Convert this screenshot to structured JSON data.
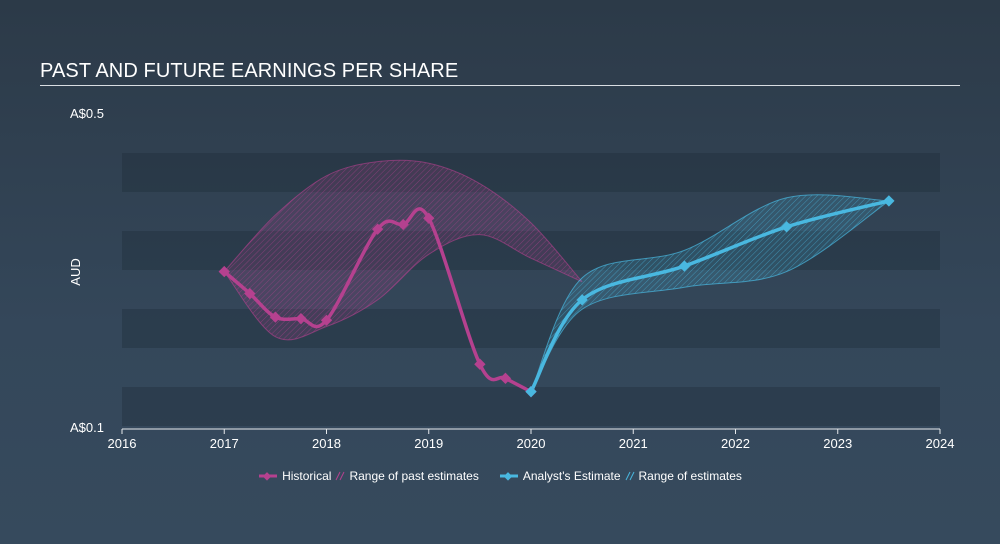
{
  "title": "PAST AND FUTURE EARNINGS PER SHARE",
  "chart_data": {
    "type": "line",
    "title": "PAST AND FUTURE EARNINGS PER SHARE",
    "ylabel": "AUD",
    "ylim": [
      0.1,
      0.5
    ],
    "xlim": [
      2016,
      2024
    ],
    "y_tick_labels": [
      "A$0.5",
      "A$0.1"
    ],
    "y_ticks": [
      0.5,
      0.1
    ],
    "x_ticks": [
      2016,
      2017,
      2018,
      2019,
      2020,
      2021,
      2022,
      2023,
      2024
    ],
    "x_tick_labels": [
      "2016",
      "2017",
      "2018",
      "2019",
      "2020",
      "2021",
      "2022",
      "2023",
      "2024"
    ],
    "series": [
      {
        "name": "Historical",
        "color": "#b5418f",
        "x": [
          2017.0,
          2017.25,
          2017.5,
          2017.75,
          2018.0,
          2018.5,
          2018.75,
          2019.0,
          2019.5,
          2019.75,
          2020.0
        ],
        "y": [
          0.298,
          0.27,
          0.24,
          0.238,
          0.236,
          0.352,
          0.358,
          0.366,
          0.18,
          0.162,
          0.145
        ]
      },
      {
        "name": "Analyst's Estimate",
        "color": "#49b8e0",
        "x": [
          2020.0,
          2020.5,
          2021.5,
          2022.5,
          2023.5
        ],
        "y": [
          0.145,
          0.262,
          0.305,
          0.355,
          0.388
        ]
      }
    ],
    "ranges": [
      {
        "name": "Range of past estimates",
        "color": "#b5418f",
        "x": [
          2017.0,
          2017.5,
          2018.0,
          2018.5,
          2019.0,
          2019.5,
          2020.0,
          2020.5
        ],
        "upper": [
          0.298,
          0.37,
          0.42,
          0.438,
          0.436,
          0.41,
          0.36,
          0.285
        ],
        "lower": [
          0.298,
          0.215,
          0.228,
          0.262,
          0.32,
          0.345,
          0.315,
          0.285
        ]
      },
      {
        "name": "Range of estimates",
        "color": "#49b8e0",
        "x": [
          2020.0,
          2020.5,
          2021.5,
          2022.5,
          2023.5
        ],
        "upper": [
          0.145,
          0.29,
          0.325,
          0.392,
          0.388
        ],
        "lower": [
          0.145,
          0.25,
          0.278,
          0.298,
          0.388
        ]
      }
    ],
    "legend": {
      "placement": "bottom-center",
      "items": [
        "Historical",
        "Range of past estimates",
        "Analyst's Estimate",
        "Range of estimates"
      ]
    },
    "grid": "horizontal-bands"
  }
}
